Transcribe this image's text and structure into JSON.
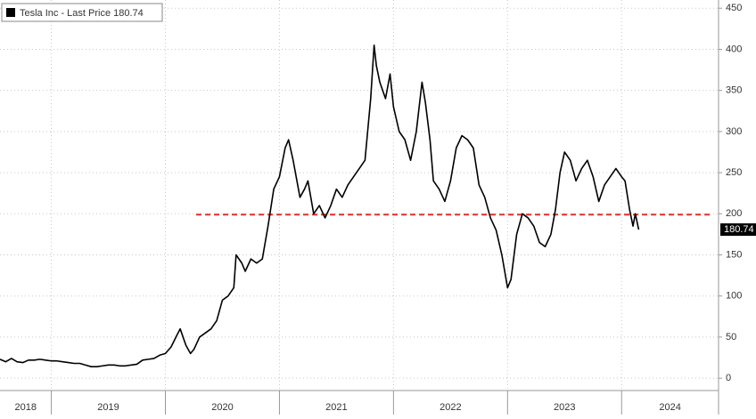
{
  "chart_data": {
    "type": "line",
    "x": [
      2018.55,
      2018.6,
      2018.65,
      2018.7,
      2018.75,
      2018.8,
      2018.85,
      2018.9,
      2018.95,
      2019.0,
      2019.05,
      2019.1,
      2019.15,
      2019.2,
      2019.25,
      2019.3,
      2019.35,
      2019.4,
      2019.45,
      2019.5,
      2019.55,
      2019.6,
      2019.65,
      2019.7,
      2019.75,
      2019.8,
      2019.85,
      2019.9,
      2019.95,
      2020.0,
      2020.05,
      2020.1,
      2020.13,
      2020.18,
      2020.22,
      2020.25,
      2020.3,
      2020.35,
      2020.4,
      2020.45,
      2020.5,
      2020.55,
      2020.6,
      2020.62,
      2020.67,
      2020.7,
      2020.75,
      2020.8,
      2020.85,
      2020.9,
      2020.95,
      2021.0,
      2021.05,
      2021.08,
      2021.12,
      2021.18,
      2021.22,
      2021.25,
      2021.3,
      2021.35,
      2021.4,
      2021.45,
      2021.5,
      2021.55,
      2021.6,
      2021.65,
      2021.7,
      2021.75,
      2021.8,
      2021.83,
      2021.85,
      2021.88,
      2021.93,
      2021.97,
      2022.0,
      2022.05,
      2022.1,
      2022.15,
      2022.2,
      2022.25,
      2022.28,
      2022.32,
      2022.35,
      2022.4,
      2022.45,
      2022.5,
      2022.55,
      2022.6,
      2022.65,
      2022.7,
      2022.75,
      2022.8,
      2022.85,
      2022.9,
      2022.95,
      2023.0,
      2023.03,
      2023.08,
      2023.13,
      2023.18,
      2023.23,
      2023.28,
      2023.33,
      2023.38,
      2023.42,
      2023.46,
      2023.5,
      2023.55,
      2023.6,
      2023.65,
      2023.7,
      2023.75,
      2023.8,
      2023.85,
      2023.9,
      2023.95,
      2024.0,
      2024.03,
      2024.07,
      2024.1,
      2024.12,
      2024.15
    ],
    "series": [
      {
        "name": "Tesla Inc - Last Price 180.74",
        "color": "#000000",
        "values": [
          23,
          20,
          24,
          20,
          19,
          22,
          22,
          23,
          22,
          21,
          21,
          20,
          19,
          18,
          18,
          16,
          14,
          14,
          15,
          16,
          16,
          15,
          15,
          16,
          17,
          22,
          23,
          24,
          28,
          30,
          38,
          52,
          60,
          40,
          30,
          35,
          50,
          55,
          60,
          70,
          95,
          100,
          110,
          150,
          140,
          130,
          145,
          140,
          145,
          185,
          230,
          245,
          280,
          290,
          265,
          220,
          230,
          240,
          200,
          210,
          195,
          210,
          230,
          220,
          235,
          245,
          255,
          265,
          340,
          405,
          380,
          360,
          340,
          370,
          330,
          300,
          290,
          265,
          300,
          360,
          335,
          290,
          240,
          230,
          215,
          240,
          280,
          295,
          290,
          280,
          235,
          220,
          195,
          180,
          150,
          110,
          120,
          175,
          200,
          195,
          185,
          165,
          160,
          175,
          205,
          250,
          275,
          265,
          240,
          255,
          265,
          245,
          215,
          235,
          245,
          255,
          245,
          240,
          205,
          185,
          200,
          180.74
        ]
      }
    ],
    "xlim": [
      2018.55,
      2024.85
    ],
    "xticks": [
      2019,
      2020,
      2021,
      2022,
      2023,
      2024
    ],
    "year_labels": [
      "2018",
      "2019",
      "2020",
      "2021",
      "2022",
      "2023",
      "2024"
    ],
    "ylim": [
      -15,
      460
    ],
    "yticks": [
      0,
      50,
      100,
      150,
      200,
      250,
      300,
      350,
      400,
      450
    ],
    "grid": true,
    "reference_line": {
      "value": 199,
      "x": [
        2020.27,
        2024.78
      ],
      "color": "#e03030"
    }
  }
}
